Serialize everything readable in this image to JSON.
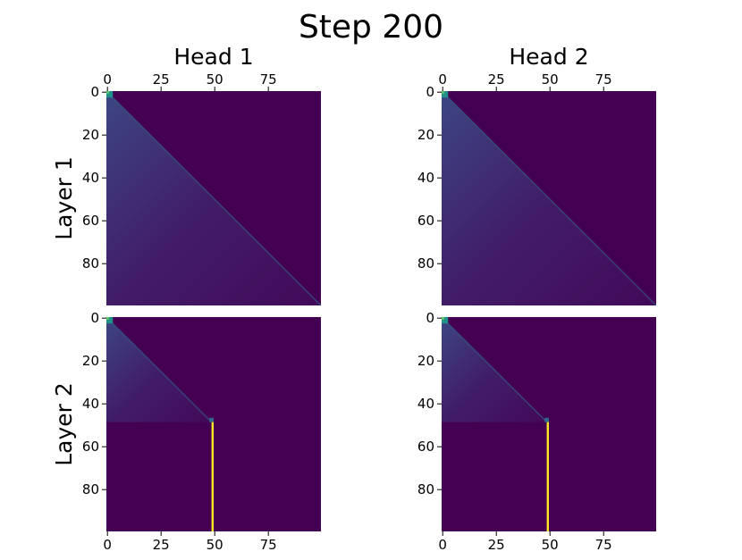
{
  "figure": {
    "title": "Step 200",
    "col_titles": [
      "Head 1",
      "Head 2"
    ],
    "row_titles": [
      "Layer 1",
      "Layer 2"
    ]
  },
  "colors": {
    "background_low": "#440154",
    "diag_high": "#3b528b",
    "mid": "#31688e",
    "teal": "#21918c",
    "green": "#5ec962",
    "yellow": "#fde725"
  },
  "chart_data": {
    "type": "heatmap",
    "title": "Step 200",
    "colormap": "viridis",
    "grid": false,
    "panels": [
      {
        "row": "Layer 1",
        "col": "Head 1",
        "xlim": [
          0,
          99
        ],
        "ylim": [
          99,
          0
        ],
        "xticks": [
          0,
          25,
          50,
          75
        ],
        "yticks": [
          0,
          20,
          40,
          60,
          80
        ],
        "x_tick_side": "top",
        "description_values": {
          "pattern": "lower-triangular",
          "row_end": 99,
          "peak_cell": [
            0,
            0,
            1.0
          ]
        }
      },
      {
        "row": "Layer 1",
        "col": "Head 2",
        "xlim": [
          0,
          99
        ],
        "ylim": [
          99,
          0
        ],
        "xticks": [
          0,
          25,
          50,
          75
        ],
        "yticks": [
          0,
          20,
          40,
          60,
          80
        ],
        "x_tick_side": "top",
        "description_values": {
          "pattern": "lower-triangular",
          "row_end": 99,
          "peak_cell": [
            0,
            0,
            1.0
          ]
        }
      },
      {
        "row": "Layer 2",
        "col": "Head 1",
        "xlim": [
          0,
          99
        ],
        "ylim": [
          99,
          0
        ],
        "xticks": [
          0,
          25,
          50,
          75
        ],
        "yticks": [
          0,
          20,
          40,
          60,
          80
        ],
        "x_tick_side": "bottom",
        "description_values": {
          "pattern": "lower-triangular",
          "row_end": 48,
          "column_peak": 49,
          "column_start_row": 49,
          "column_value": 1.0
        }
      },
      {
        "row": "Layer 2",
        "col": "Head 2",
        "xlim": [
          0,
          99
        ],
        "ylim": [
          99,
          0
        ],
        "xticks": [
          0,
          25,
          50,
          75
        ],
        "yticks": [
          0,
          20,
          40,
          60,
          80
        ],
        "x_tick_side": "bottom",
        "description_values": {
          "pattern": "lower-triangular",
          "row_end": 48,
          "column_peak": 49,
          "column_start_row": 49,
          "column_value": 1.0
        }
      }
    ]
  }
}
